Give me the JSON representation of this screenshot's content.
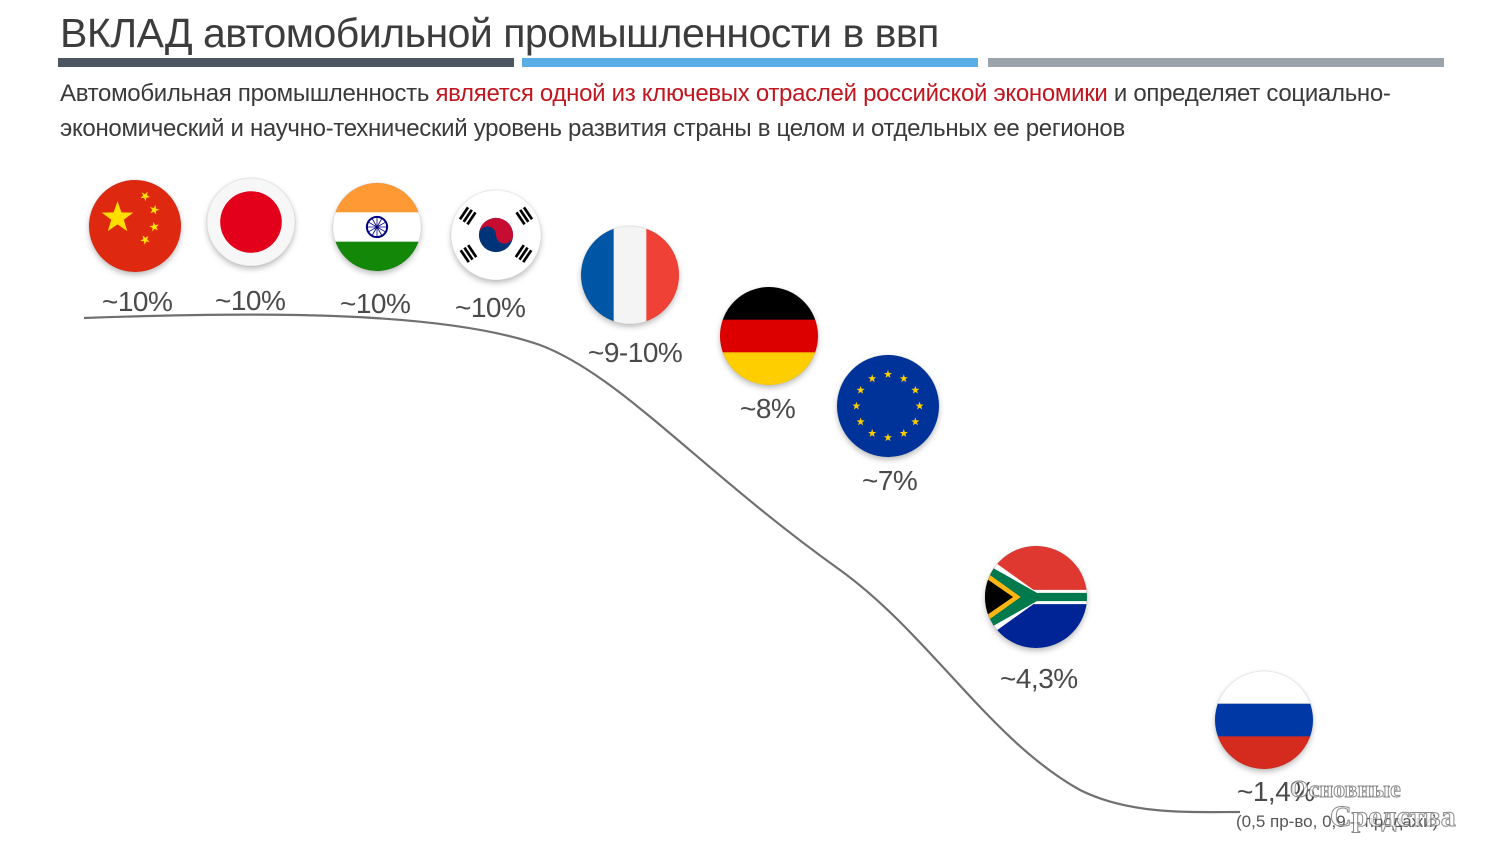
{
  "header": {
    "title": "ВКЛАД автомобильной промышленности в ввп",
    "subtitle_part1": "Автомобильная промышленность ",
    "subtitle_highlight": "является одной из ключевых отраслей российской экономики",
    "subtitle_part2": " и определяет социально-экономический и научно-технический уровень развития страны в целом и отдельных ее регионов"
  },
  "colors": {
    "bar_dark": "#4b5661",
    "bar_blue": "#5aaee6",
    "bar_gray": "#9ba3ab",
    "highlight": "#c0161f",
    "curve": "#707070"
  },
  "chart_data": {
    "type": "line",
    "series": [
      {
        "points": [
          {
            "country": "Китай",
            "flag": "china-flag",
            "label": "~10%",
            "value": 10
          },
          {
            "country": "Япония",
            "flag": "japan-flag",
            "label": "~10%",
            "value": 10
          },
          {
            "country": "Индия",
            "flag": "india-flag",
            "label": "~10%",
            "value": 10
          },
          {
            "country": "Южная Корея",
            "flag": "south-korea-flag",
            "label": "~10%",
            "value": 10
          },
          {
            "country": "Франция",
            "flag": "france-flag",
            "label": "~9-10%",
            "value": 9.5
          },
          {
            "country": "Германия",
            "flag": "germany-flag",
            "label": "~8%",
            "value": 8
          },
          {
            "country": "ЕС",
            "flag": "eu-flag",
            "label": "~7%",
            "value": 7
          },
          {
            "country": "ЮАР",
            "flag": "south-africa-flag",
            "label": "~4,3%",
            "value": 4.3
          },
          {
            "country": "Россия",
            "flag": "russia-flag",
            "label": "~1,4%",
            "value": 1.4
          }
        ]
      }
    ],
    "note": "(0,5 пр-во, 0,9 – продажи)"
  },
  "watermark": {
    "line1": "Основные",
    "line2": "Средства"
  }
}
